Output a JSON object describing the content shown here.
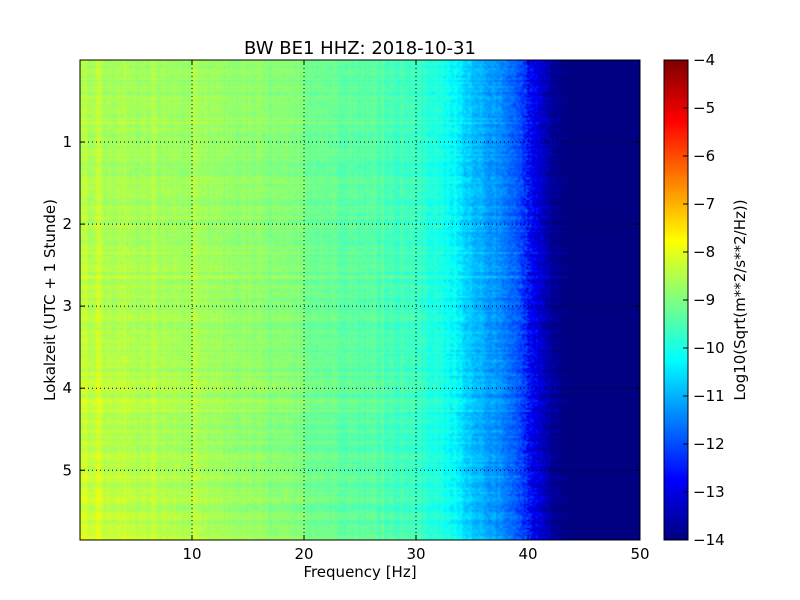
{
  "chart_data": {
    "type": "heatmap",
    "title": "BW BE1 HHZ: 2018-10-31",
    "xlabel": "Frequency [Hz]",
    "ylabel": "Lokalzeit (UTC + 1 Stunde)",
    "xlim": [
      0,
      50
    ],
    "ylim": [
      5.85,
      0
    ],
    "xticks": [
      10,
      20,
      30,
      40,
      50
    ],
    "yticks": [
      1,
      2,
      3,
      4,
      5
    ],
    "grid": true,
    "colormap": "jet",
    "colorbar": {
      "label": "Log10(Sqrt(m**2/s**2/Hz))",
      "range": [
        -14,
        -4
      ],
      "ticks": [
        -14,
        -13,
        -12,
        -11,
        -10,
        -9,
        -8,
        -7,
        -6,
        -5,
        -4
      ]
    },
    "frequency_profile": {
      "frequency": [
        0,
        5,
        10,
        15,
        20,
        25,
        30,
        33,
        35,
        37,
        39,
        40,
        41,
        42,
        43,
        50
      ],
      "value": [
        -8.6,
        -8.7,
        -8.75,
        -8.85,
        -9.1,
        -9.35,
        -9.7,
        -10.2,
        -10.8,
        -11.3,
        -11.9,
        -12.5,
        -13.2,
        -13.7,
        -14.0,
        -14.0
      ]
    }
  }
}
